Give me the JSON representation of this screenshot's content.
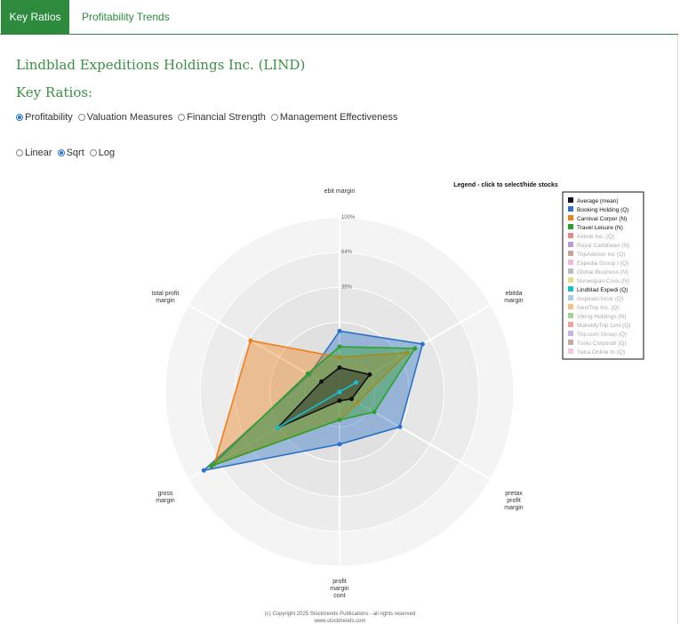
{
  "tabs": [
    {
      "label": "Key Ratios",
      "active": true
    },
    {
      "label": "Profitability Trends",
      "active": false
    }
  ],
  "company_title": "Lindblad Expeditions Holdings Inc. (LIND)",
  "section_title": "Key Ratios:",
  "ratio_options": [
    {
      "label": "Profitability",
      "selected": true
    },
    {
      "label": "Valuation Measures",
      "selected": false
    },
    {
      "label": "Financial Strength",
      "selected": false
    },
    {
      "label": "Management Effectiveness",
      "selected": false
    }
  ],
  "scale_options": [
    {
      "label": "Linear",
      "selected": false
    },
    {
      "label": "Sqrt",
      "selected": true
    },
    {
      "label": "Log",
      "selected": false
    }
  ],
  "footer": {
    "copyright": "(c) Copyright 2025 Stocktrends Publications - all rights reserved",
    "site": "www.stocktrends.com"
  },
  "chart_data": {
    "type": "radar",
    "scale": "sqrt",
    "axes": [
      "ebit margin",
      "ebitda margin",
      "pretax profit margin",
      "profit margin cont",
      "gross margin",
      "total profit margin"
    ],
    "ring_labels": [
      "100%",
      "64%",
      "36%"
    ],
    "legend_title": "Legend - click to select/hide stocks",
    "legend": [
      {
        "name": "Average (mean)",
        "color": "#111111",
        "active": true
      },
      {
        "name": "Booking Holding (Q)",
        "color": "#2a73c9",
        "active": true
      },
      {
        "name": "Carnival Corpor (N)",
        "color": "#f07f17",
        "active": true
      },
      {
        "name": "Travel Leisure (N)",
        "color": "#2ca02c",
        "active": true
      },
      {
        "name": "Airbnb Inc. (Q)",
        "color": "#e28a8a",
        "active": false
      },
      {
        "name": "Royal Caribbean (N)",
        "color": "#b79bd6",
        "active": false
      },
      {
        "name": "TripAdvisor Inc (Q)",
        "color": "#c9a39a",
        "active": false
      },
      {
        "name": "Expedia Group I (Q)",
        "color": "#f1b8d8",
        "active": false
      },
      {
        "name": "Global Business (N)",
        "color": "#bdbdbd",
        "active": false
      },
      {
        "name": "Norwegian Cruis (N)",
        "color": "#e3e08a",
        "active": false
      },
      {
        "name": "Lindblad Expedi (Q)",
        "color": "#17becf",
        "active": true
      },
      {
        "name": "Inspirato Incor (Q)",
        "color": "#a7cbe8",
        "active": false
      },
      {
        "name": "NextTrip Inc. (Q)",
        "color": "#f7c08a",
        "active": false
      },
      {
        "name": "Viking Holdings (N)",
        "color": "#9fd68f",
        "active": false
      },
      {
        "name": "MakeMyTrip Limi (Q)",
        "color": "#f2a0a0",
        "active": false
      },
      {
        "name": "Trip.com Group (Q)",
        "color": "#c9b3e0",
        "active": false
      },
      {
        "name": "Tuniu Corporati (Q)",
        "color": "#c8a89f",
        "active": false
      },
      {
        "name": "Yatra Online In (Q)",
        "color": "#f4c6e0",
        "active": false
      }
    ],
    "series": [
      {
        "name": "Booking Holding (Q)",
        "color": "#2a73c9",
        "values": [
          0.35,
          0.55,
          0.4,
          0.3,
          0.9,
          0.2
        ]
      },
      {
        "name": "Carnival Corpor (N)",
        "color": "#f07f17",
        "values": [
          0.2,
          0.45,
          0.12,
          0.16,
          0.83,
          0.59
        ]
      },
      {
        "name": "Travel Leisure (N)",
        "color": "#2ca02c",
        "values": [
          0.26,
          0.5,
          0.23,
          0.16,
          0.85,
          0.21
        ]
      },
      {
        "name": "Average (mean)",
        "color": "#111111",
        "values": [
          0.14,
          0.2,
          0.08,
          0.05,
          0.41,
          0.12
        ]
      },
      {
        "name": "Lindblad Expedi (Q)",
        "color": "#17becf",
        "values": [
          0.0,
          0.11,
          0.0,
          0.0,
          0.41,
          0.0
        ]
      }
    ]
  }
}
